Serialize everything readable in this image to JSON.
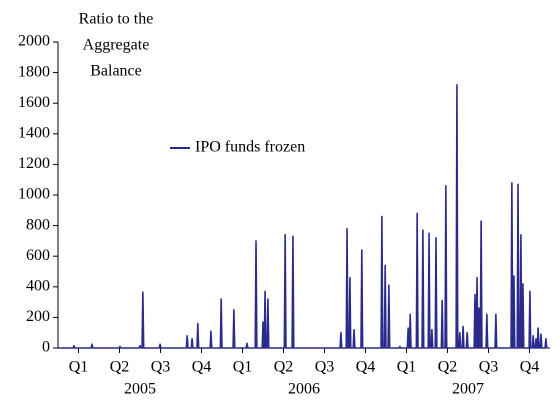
{
  "chart_data": {
    "type": "line",
    "ylabel": [
      "Ratio to the",
      "Aggregate",
      "Balance"
    ],
    "xlim": [
      0,
      12
    ],
    "ylim": [
      0,
      2000
    ],
    "yticks": [
      0,
      200,
      400,
      600,
      800,
      1000,
      1200,
      1400,
      1600,
      1800,
      2000
    ],
    "xticks": [
      {
        "value": 0.5,
        "label": "Q1"
      },
      {
        "value": 1.5,
        "label": "Q2"
      },
      {
        "value": 2.5,
        "label": "Q3"
      },
      {
        "value": 3.5,
        "label": "Q4"
      },
      {
        "value": 4.5,
        "label": "Q1"
      },
      {
        "value": 5.5,
        "label": "Q2"
      },
      {
        "value": 6.5,
        "label": "Q3"
      },
      {
        "value": 7.5,
        "label": "Q4"
      },
      {
        "value": 8.5,
        "label": "Q1"
      },
      {
        "value": 9.5,
        "label": "Q2"
      },
      {
        "value": 10.5,
        "label": "Q3"
      },
      {
        "value": 11.5,
        "label": "Q4"
      }
    ],
    "year_ticks": [
      {
        "value": 2,
        "label": "2005"
      },
      {
        "value": 6,
        "label": "2006"
      },
      {
        "value": 10,
        "label": "2007"
      }
    ],
    "legend": "upper-center",
    "series": [
      {
        "name": "IPO funds frozen",
        "color": "#2b2b8c",
        "x": [
          0,
          0.37,
          0.39,
          0.41,
          0.81,
          0.83,
          0.85,
          1.49,
          1.51,
          1.53,
          1.98,
          2.0,
          2.02,
          2.05,
          2.07,
          2.09,
          2.47,
          2.49,
          2.51,
          3.13,
          3.15,
          3.17,
          3.25,
          3.27,
          3.29,
          3.39,
          3.41,
          3.43,
          3.71,
          3.73,
          3.75,
          3.96,
          3.98,
          4.0,
          4.27,
          4.29,
          4.31,
          4.59,
          4.61,
          4.63,
          4.81,
          4.83,
          4.85,
          4.98,
          5.0,
          5.02,
          5.03,
          5.05,
          5.07,
          5.1,
          5.12,
          5.14,
          5.52,
          5.54,
          5.56,
          5.71,
          5.73,
          5.75,
          6.88,
          6.9,
          6.92,
          7.03,
          7.05,
          7.07,
          7.1,
          7.12,
          7.14,
          7.2,
          7.22,
          7.24,
          7.39,
          7.41,
          7.43,
          7.88,
          7.9,
          7.92,
          7.96,
          7.98,
          8.0,
          8.05,
          8.07,
          8.09,
          8.32,
          8.34,
          8.36,
          8.52,
          8.54,
          8.56,
          8.57,
          8.59,
          8.61,
          8.74,
          8.76,
          8.78,
          8.88,
          8.9,
          8.92,
          9.03,
          9.05,
          9.07,
          9.1,
          9.12,
          9.14,
          9.2,
          9.22,
          9.24,
          9.35,
          9.37,
          9.39,
          9.44,
          9.46,
          9.48,
          9.71,
          9.73,
          9.75,
          9.78,
          9.8,
          9.82,
          9.86,
          9.88,
          9.9,
          9.96,
          9.98,
          10.0,
          10.15,
          10.17,
          10.19,
          10.2,
          10.22,
          10.24,
          10.25,
          10.27,
          10.29,
          10.3,
          10.32,
          10.34,
          10.44,
          10.46,
          10.48,
          10.66,
          10.68,
          10.7,
          11.05,
          11.07,
          11.09,
          11.1,
          11.12,
          11.14,
          11.2,
          11.22,
          11.24,
          11.27,
          11.29,
          11.31,
          11.32,
          11.34,
          11.36,
          11.49,
          11.51,
          11.53,
          11.57,
          11.59,
          11.61,
          11.64,
          11.66,
          11.68,
          11.69,
          11.71,
          11.73,
          11.76,
          11.78,
          11.8,
          11.88,
          11.9,
          11.92
        ],
        "values": [
          0,
          0,
          15,
          0,
          0,
          25,
          0,
          0,
          10,
          0,
          0,
          15,
          0,
          0,
          365,
          0,
          0,
          25,
          0,
          0,
          80,
          0,
          0,
          60,
          0,
          0,
          160,
          0,
          0,
          110,
          0,
          0,
          320,
          0,
          0,
          250,
          0,
          0,
          30,
          0,
          0,
          700,
          0,
          0,
          170,
          0,
          0,
          370,
          0,
          0,
          320,
          0,
          0,
          740,
          0,
          0,
          730,
          0,
          0,
          100,
          0,
          0,
          780,
          0,
          0,
          460,
          0,
          0,
          120,
          0,
          0,
          640,
          0,
          0,
          860,
          0,
          0,
          540,
          0,
          0,
          410,
          0,
          0,
          10,
          0,
          0,
          130,
          0,
          0,
          220,
          0,
          0,
          880,
          0,
          0,
          770,
          0,
          0,
          750,
          0,
          0,
          120,
          0,
          0,
          720,
          0,
          0,
          310,
          0,
          0,
          1060,
          0,
          0,
          1720,
          0,
          0,
          100,
          0,
          0,
          140,
          0,
          0,
          100,
          0,
          0,
          350,
          0,
          0,
          460,
          0,
          0,
          260,
          0,
          0,
          830,
          0,
          0,
          220,
          0,
          0,
          220,
          0,
          0,
          1080,
          0,
          0,
          470,
          0,
          0,
          1070,
          0,
          0,
          740,
          0,
          0,
          420,
          0,
          0,
          370,
          0,
          0,
          80,
          0,
          0,
          60,
          0,
          0,
          130,
          0,
          0,
          90,
          0,
          0,
          60,
          0
        ]
      }
    ]
  }
}
